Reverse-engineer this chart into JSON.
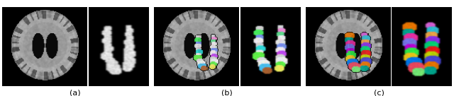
{
  "n_subplots": 3,
  "labels": [
    "(a)",
    "(b)",
    "(c)"
  ],
  "fig_width": 6.4,
  "fig_height": 1.36,
  "background_color": "#ffffff",
  "label_fontsize": 8,
  "brain_bg": 0.0,
  "panel_bg": "#000000"
}
